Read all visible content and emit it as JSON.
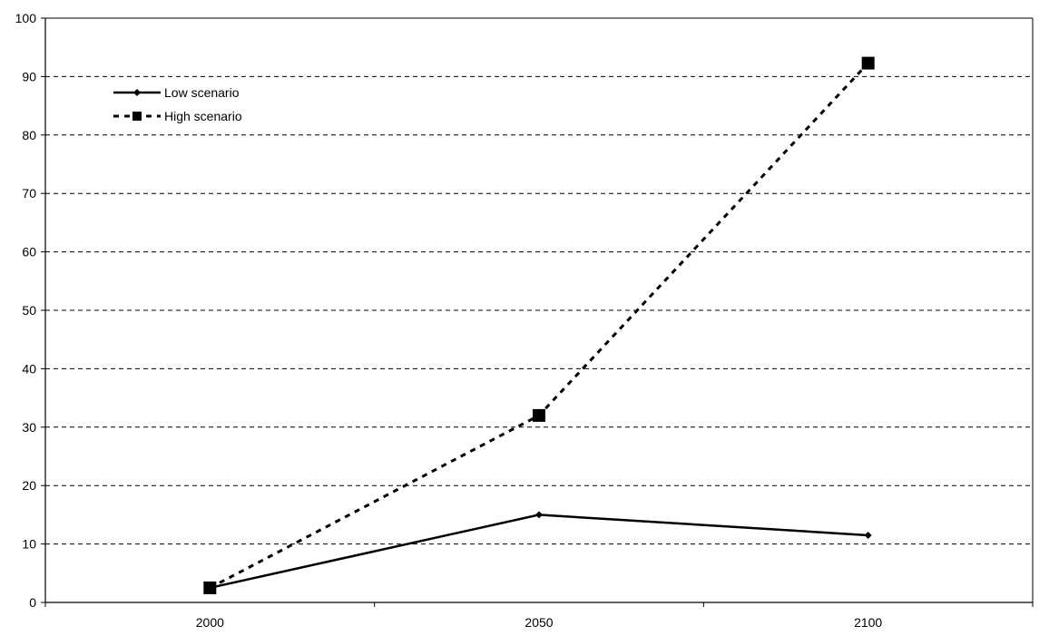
{
  "chart_data": {
    "type": "line",
    "title": "",
    "xlabel": "",
    "ylabel": "",
    "categories": [
      "2000",
      "2050",
      "2100"
    ],
    "ylim": [
      0,
      100
    ],
    "y_ticks": [
      "0",
      "10",
      "20",
      "30",
      "40",
      "50",
      "60",
      "70",
      "80",
      "90",
      "100"
    ],
    "grid": "horizontal dashed",
    "legend_position": "top-left",
    "series": [
      {
        "name": "Low scenario",
        "values": [
          2.5,
          15,
          11.5
        ],
        "line_style": "solid",
        "marker": "diamond",
        "color": "#000000"
      },
      {
        "name": "High scenario",
        "values": [
          2.5,
          32,
          92.3
        ],
        "line_style": "dotted",
        "marker": "square",
        "color": "#000000"
      }
    ]
  }
}
